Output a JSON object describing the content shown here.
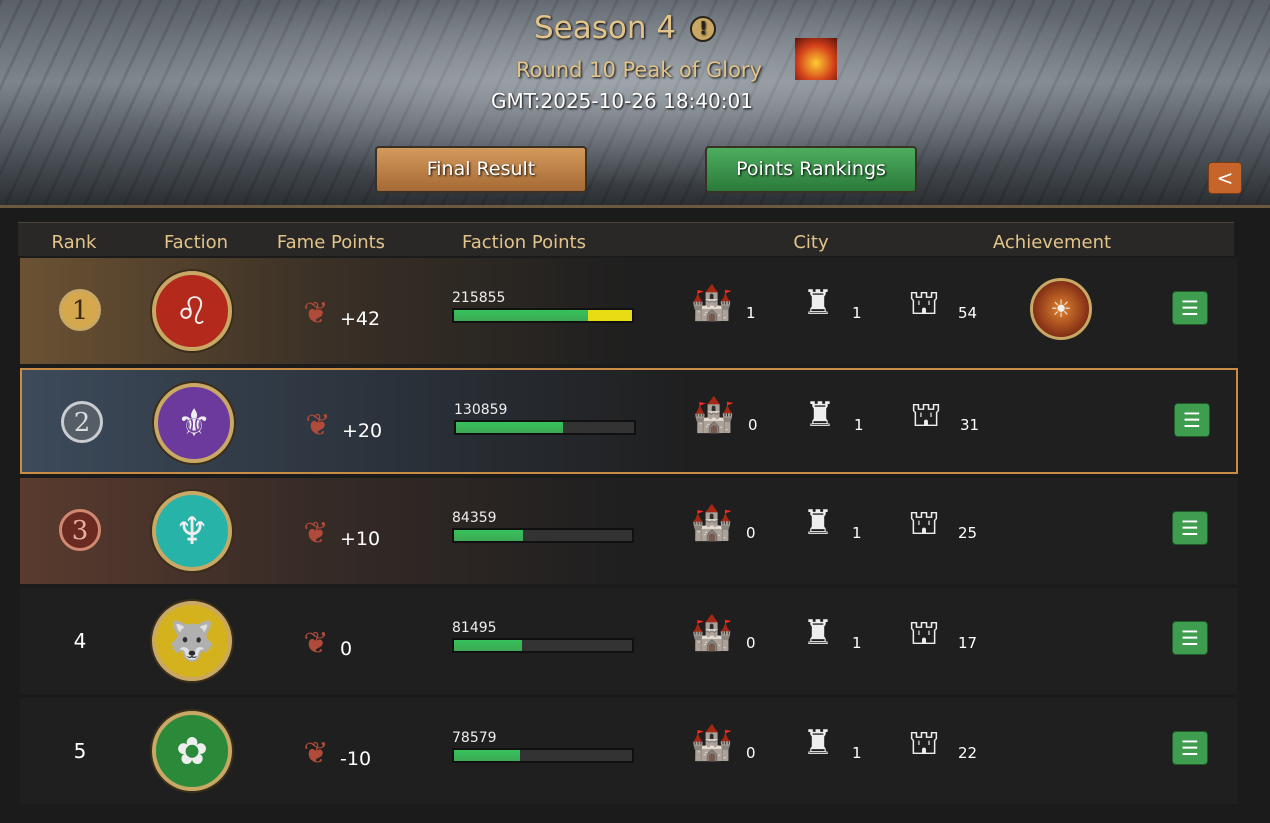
{
  "banner": {
    "title": "Season 4",
    "info_icon": "exclamation-icon",
    "round": "Round 10 Peak of Glory",
    "time": "GMT:2025-10-26 18:40:01",
    "final_result": "Final Result",
    "points_rankings": "Points Rankings",
    "share_icon": "share-icon"
  },
  "columns": [
    "Rank",
    "Faction",
    "Fame Points",
    "Faction Points",
    "City",
    "Achievement"
  ],
  "rows": [
    {
      "rank": "1",
      "crest": "lion",
      "crest_color": "#b32a1c",
      "fame": "+42",
      "faction_points": "215855",
      "progress": 0.75,
      "extra_progress": 0.25,
      "city1": "1",
      "city2": "1",
      "city3": "54",
      "achievement": true
    },
    {
      "rank": "2",
      "crest": "dragon",
      "crest_color": "#6b3a9c",
      "fame": "+20",
      "faction_points": "130859",
      "progress": 0.6,
      "city1": "0",
      "city2": "1",
      "city3": "31",
      "achievement": false
    },
    {
      "rank": "3",
      "crest": "kraken",
      "crest_color": "#27b3a8",
      "fame": "+10",
      "faction_points": "84359",
      "progress": 0.39,
      "city1": "0",
      "city2": "1",
      "city3": "25",
      "achievement": false
    },
    {
      "rank": "4",
      "crest": "wolf",
      "crest_color": "#d4b21e",
      "fame": "0",
      "faction_points": "81495",
      "progress": 0.38,
      "city1": "0",
      "city2": "1",
      "city3": "17",
      "achievement": false
    },
    {
      "rank": "5",
      "crest": "rose",
      "crest_color": "#2a8a3a",
      "fame": "-10",
      "faction_points": "78579",
      "progress": 0.37,
      "city1": "0",
      "city2": "1",
      "city3": "22",
      "achievement": false
    }
  ]
}
